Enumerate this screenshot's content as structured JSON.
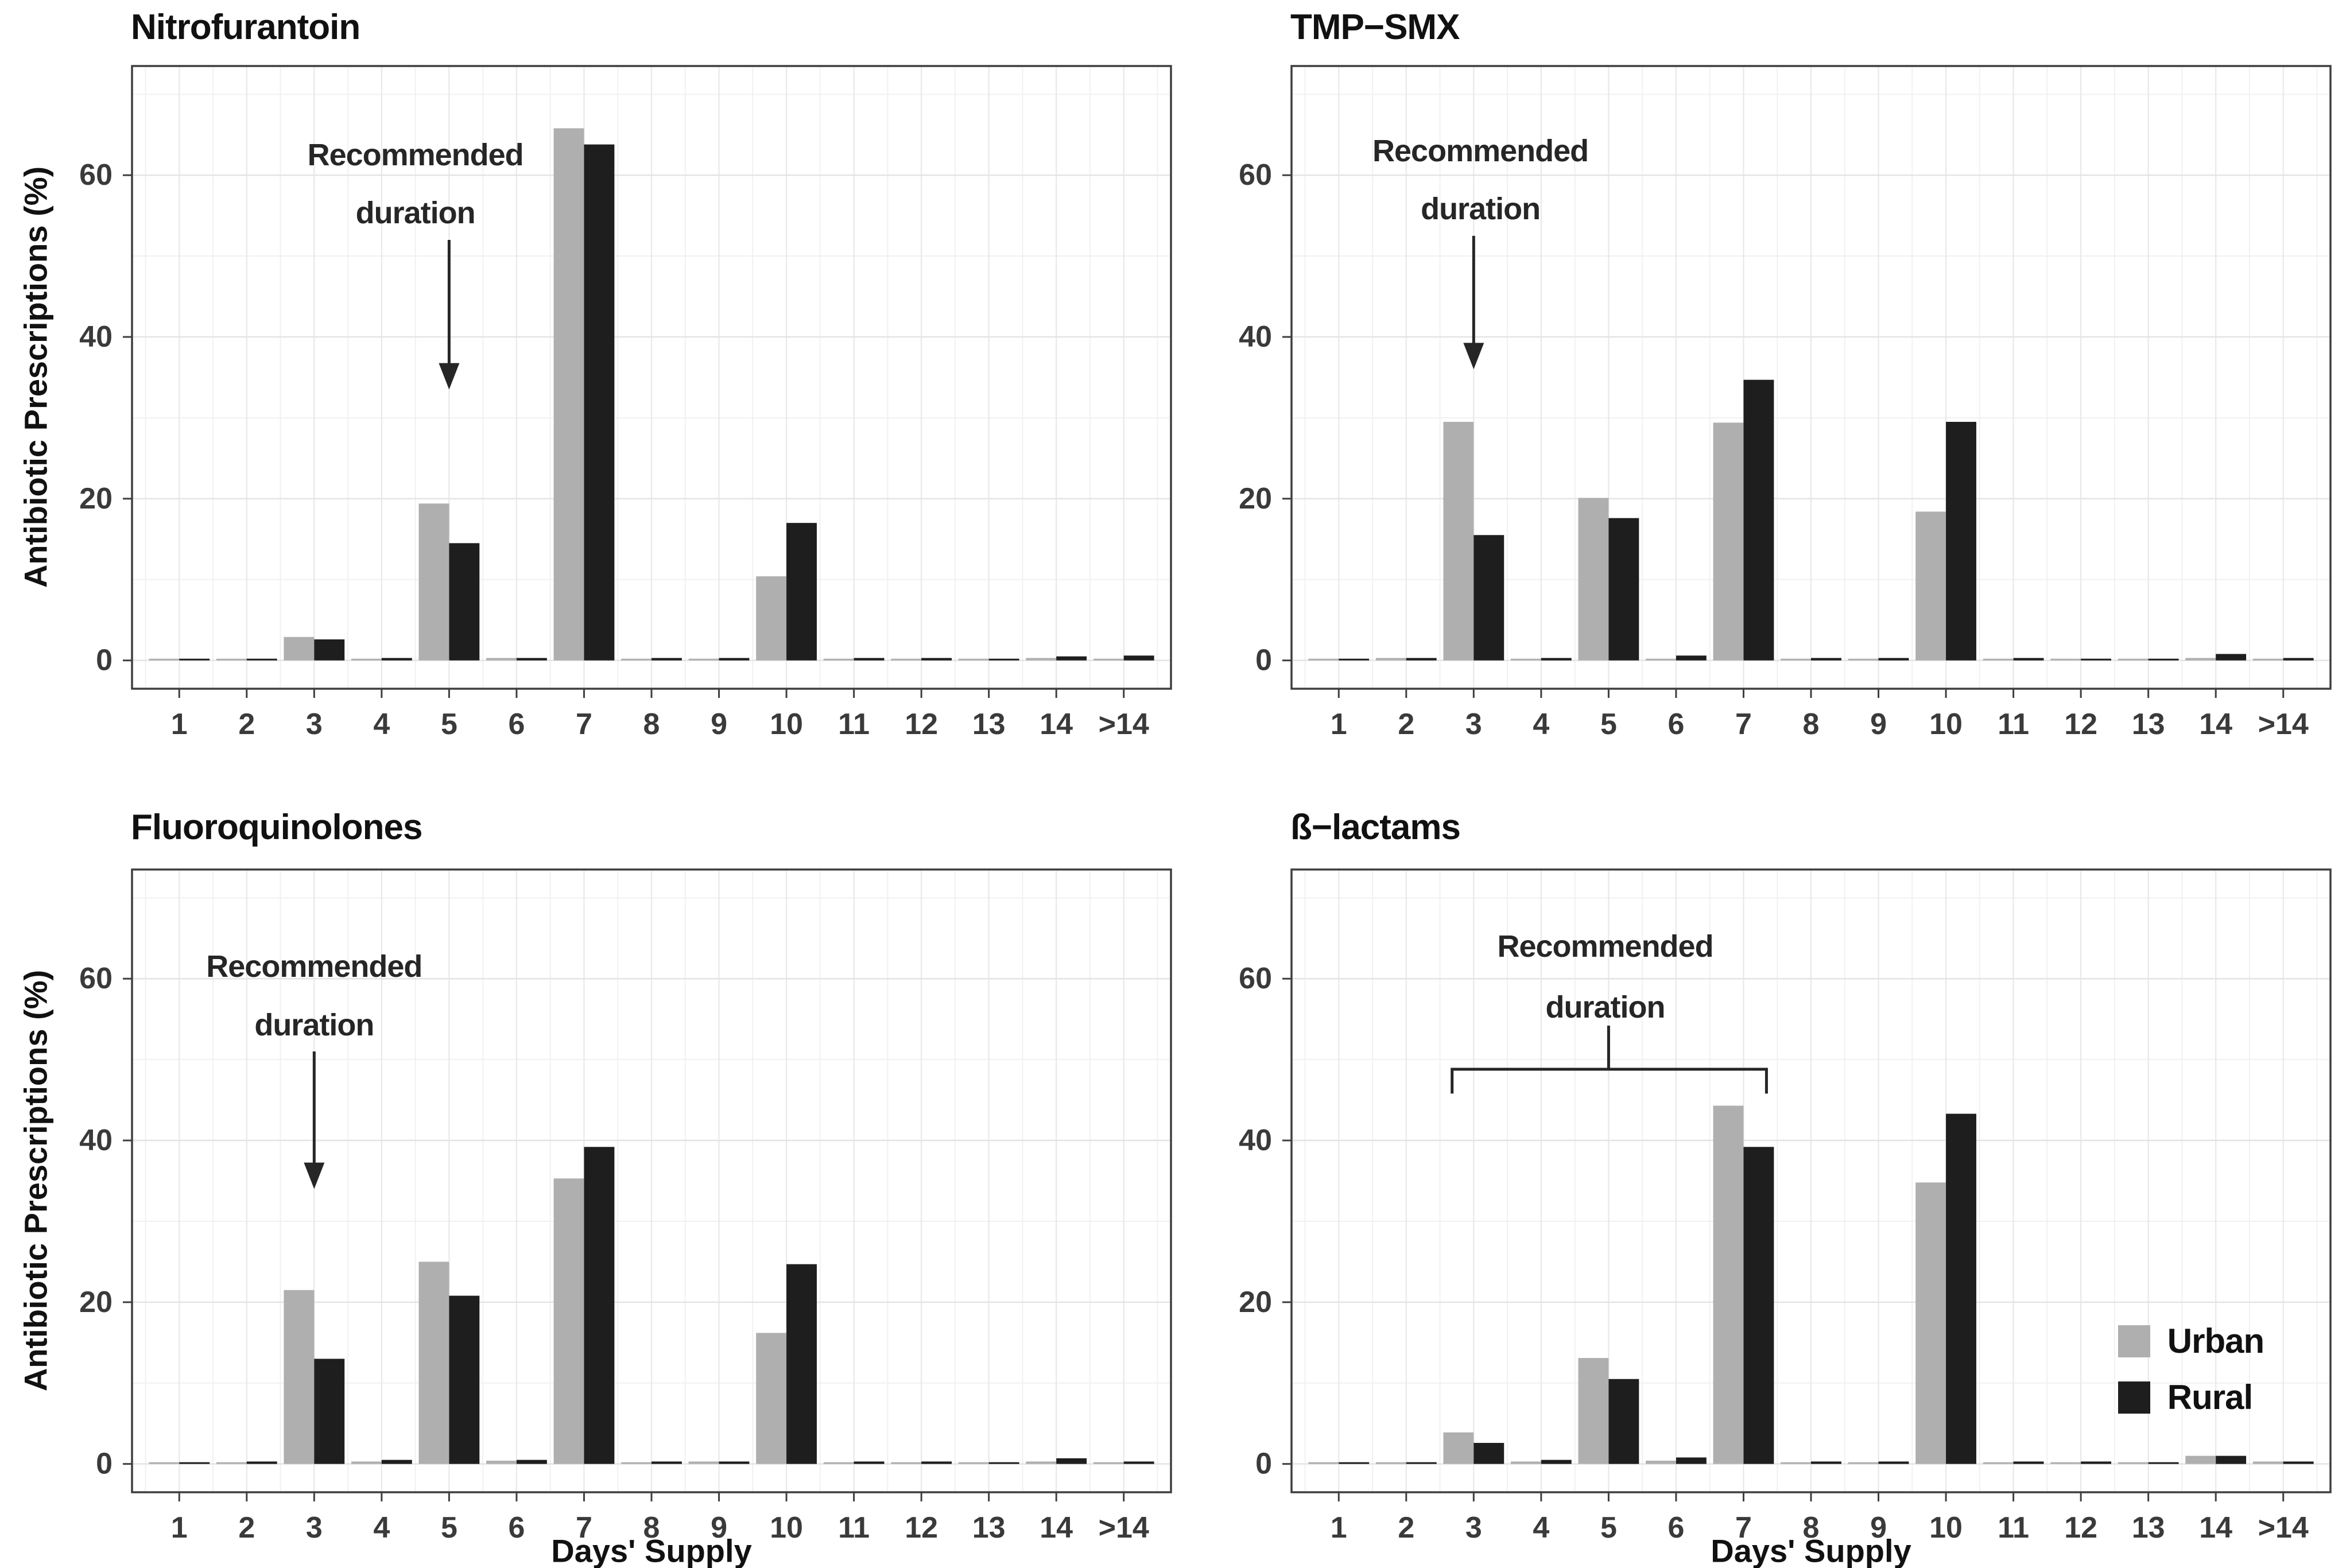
{
  "figure": {
    "background": "#ffffff",
    "y_axis_title": "Antibiotic Prescriptions (%)",
    "x_axis_title": "Days' Supply",
    "annotation_label": "Recommended duration",
    "legend": {
      "position": "inside bottom-right of ß−lactams panel",
      "items": [
        {
          "label": "Urban",
          "color": "#AFAFAF"
        },
        {
          "label": "Rural",
          "color": "#1E1E1E"
        }
      ]
    },
    "colors": {
      "urban": "#AFAFAF",
      "rural": "#1E1E1E",
      "panel_border": "#3F3F3F",
      "grid_major": "#E4E4E4",
      "grid_minor": "#F1F1F1",
      "tick_label": "#3A3A3A",
      "annotation": "#262626"
    }
  },
  "chart_data": [
    {
      "type": "bar",
      "title": "Nitrofurantoin",
      "categories": [
        "1",
        "2",
        "3",
        "4",
        "5",
        "6",
        "7",
        "8",
        "9",
        "10",
        "11",
        "12",
        "13",
        "14",
        ">14"
      ],
      "series": [
        {
          "name": "Urban",
          "color": "#AFAFAF",
          "values": [
            0.2,
            0.2,
            2.9,
            0.2,
            19.4,
            0.3,
            65.8,
            0.2,
            0.2,
            10.4,
            0.2,
            0.2,
            0.2,
            0.3,
            0.2
          ]
        },
        {
          "name": "Rural",
          "color": "#1E1E1E",
          "values": [
            0.2,
            0.2,
            2.6,
            0.3,
            14.5,
            0.3,
            63.8,
            0.3,
            0.3,
            17.0,
            0.3,
            0.3,
            0.2,
            0.5,
            0.6
          ]
        }
      ],
      "yticks": [
        0,
        20,
        40,
        60
      ],
      "yticks_minor": [
        10,
        30,
        50,
        70
      ],
      "ylim": [
        -3.5,
        73.5
      ],
      "grid": true,
      "annotation": {
        "type": "arrow",
        "text": [
          "Recommended",
          "duration"
        ],
        "text_x": 4.5,
        "text_y": [
          62.5,
          55.3
        ],
        "arrow_x": 5,
        "arrow_from": 52,
        "arrow_to": 33.5
      }
    },
    {
      "type": "bar",
      "title": "TMP−SMX",
      "categories": [
        "1",
        "2",
        "3",
        "4",
        "5",
        "6",
        "7",
        "8",
        "9",
        "10",
        "11",
        "12",
        "13",
        "14",
        ">14"
      ],
      "series": [
        {
          "name": "Urban",
          "color": "#AFAFAF",
          "values": [
            0.2,
            0.3,
            29.5,
            0.2,
            20.1,
            0.2,
            29.4,
            0.2,
            0.2,
            18.4,
            0.2,
            0.2,
            0.2,
            0.3,
            0.2
          ]
        },
        {
          "name": "Rural",
          "color": "#1E1E1E",
          "values": [
            0.2,
            0.3,
            15.5,
            0.3,
            17.6,
            0.6,
            34.7,
            0.3,
            0.3,
            29.5,
            0.3,
            0.2,
            0.2,
            0.8,
            0.3
          ]
        }
      ],
      "yticks": [
        0,
        20,
        40,
        60
      ],
      "yticks_minor": [
        10,
        30,
        50,
        70
      ],
      "ylim": [
        -3.5,
        73.5
      ],
      "grid": true,
      "annotation": {
        "type": "arrow",
        "text": [
          "Recommended",
          "duration"
        ],
        "text_x": 3.1,
        "text_y": [
          63,
          55.8
        ],
        "arrow_x": 3,
        "arrow_from": 52.5,
        "arrow_to": 36
      }
    },
    {
      "type": "bar",
      "title": "Fluoroquinolones",
      "categories": [
        "1",
        "2",
        "3",
        "4",
        "5",
        "6",
        "7",
        "8",
        "9",
        "10",
        "11",
        "12",
        "13",
        "14",
        ">14"
      ],
      "series": [
        {
          "name": "Urban",
          "color": "#AFAFAF",
          "values": [
            0.2,
            0.2,
            21.5,
            0.3,
            25.0,
            0.4,
            35.3,
            0.2,
            0.3,
            16.2,
            0.2,
            0.2,
            0.2,
            0.3,
            0.2
          ]
        },
        {
          "name": "Rural",
          "color": "#1E1E1E",
          "values": [
            0.2,
            0.3,
            13.0,
            0.5,
            20.8,
            0.5,
            39.2,
            0.3,
            0.3,
            24.7,
            0.3,
            0.3,
            0.2,
            0.7,
            0.3
          ]
        }
      ],
      "yticks": [
        0,
        20,
        40,
        60
      ],
      "yticks_minor": [
        10,
        30,
        50,
        70
      ],
      "ylim": [
        -3.5,
        73.5
      ],
      "grid": true,
      "annotation": {
        "type": "arrow",
        "text": [
          "Recommended",
          "duration"
        ],
        "text_x": 3.0,
        "text_y": [
          61.5,
          54.3
        ],
        "arrow_x": 3,
        "arrow_from": 51,
        "arrow_to": 34
      }
    },
    {
      "type": "bar",
      "title": "ß−lactams",
      "categories": [
        "1",
        "2",
        "3",
        "4",
        "5",
        "6",
        "7",
        "8",
        "9",
        "10",
        "11",
        "12",
        "13",
        "14",
        ">14"
      ],
      "series": [
        {
          "name": "Urban",
          "color": "#AFAFAF",
          "values": [
            0.2,
            0.2,
            3.9,
            0.3,
            13.1,
            0.4,
            44.3,
            0.2,
            0.2,
            34.8,
            0.2,
            0.2,
            0.2,
            1.0,
            0.3
          ]
        },
        {
          "name": "Rural",
          "color": "#1E1E1E",
          "values": [
            0.2,
            0.2,
            2.6,
            0.5,
            10.5,
            0.8,
            39.2,
            0.3,
            0.3,
            43.3,
            0.3,
            0.3,
            0.2,
            1.0,
            0.3
          ]
        }
      ],
      "yticks": [
        0,
        20,
        40,
        60
      ],
      "yticks_minor": [
        10,
        30,
        50,
        70
      ],
      "ylim": [
        -3.5,
        73.5
      ],
      "grid": true,
      "annotation": {
        "type": "bracket",
        "text": [
          "Recommended",
          "duration"
        ],
        "text_x": 4.95,
        "text_y": [
          64,
          56.5
        ],
        "stem_x": 5,
        "stem_top": 54.2,
        "bracket_y": 48.8,
        "x1": 2.68,
        "x2": 7.34,
        "hook_y": 45.8
      }
    }
  ]
}
